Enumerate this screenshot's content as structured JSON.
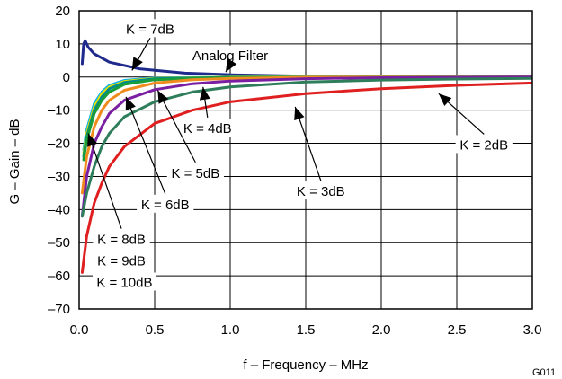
{
  "figure_id": "G011",
  "chart_data": {
    "type": "line",
    "xlabel": "f – Frequency – MHz",
    "ylabel": "G – Gain – dB",
    "xlim": [
      0,
      3.0
    ],
    "ylim": [
      -70,
      20
    ],
    "x_ticks": [
      "0.0",
      "0.5",
      "1.0",
      "1.5",
      "2.0",
      "2.5",
      "3.0"
    ],
    "y_ticks": [
      "20",
      "10",
      "0",
      "–10",
      "–20",
      "–30",
      "–40",
      "–50",
      "–60",
      "–70"
    ],
    "grid": true,
    "series": [
      {
        "name": "Analog Filter",
        "color": "#1f2a8c",
        "points": [
          [
            0.02,
            4
          ],
          [
            0.03,
            10
          ],
          [
            0.04,
            11
          ],
          [
            0.06,
            9
          ],
          [
            0.1,
            7
          ],
          [
            0.2,
            4.5
          ],
          [
            0.4,
            2.5
          ],
          [
            0.7,
            1.2
          ],
          [
            1.0,
            0.7
          ],
          [
            1.5,
            0.3
          ],
          [
            2.0,
            0.1
          ],
          [
            3.0,
            0
          ]
        ]
      },
      {
        "name": "K = 10dB",
        "color": "#00b0f0",
        "points": [
          [
            0.03,
            -22
          ],
          [
            0.05,
            -16
          ],
          [
            0.1,
            -8
          ],
          [
            0.15,
            -4.5
          ],
          [
            0.2,
            -2.5
          ],
          [
            0.3,
            -1
          ],
          [
            0.5,
            -0.3
          ],
          [
            1.0,
            0
          ],
          [
            3.0,
            0
          ]
        ]
      },
      {
        "name": "K = 9dB",
        "color": "#e8e000",
        "points": [
          [
            0.03,
            -23
          ],
          [
            0.05,
            -17
          ],
          [
            0.1,
            -9
          ],
          [
            0.15,
            -5
          ],
          [
            0.2,
            -3
          ],
          [
            0.3,
            -1.3
          ],
          [
            0.5,
            -0.4
          ],
          [
            1.0,
            0
          ],
          [
            3.0,
            0
          ]
        ]
      },
      {
        "name": "K = 8dB",
        "color": "#008b8b",
        "points": [
          [
            0.03,
            -24
          ],
          [
            0.05,
            -18
          ],
          [
            0.1,
            -10
          ],
          [
            0.15,
            -6
          ],
          [
            0.2,
            -3.5
          ],
          [
            0.3,
            -1.6
          ],
          [
            0.5,
            -0.5
          ],
          [
            1.0,
            -0.1
          ],
          [
            3.0,
            0
          ]
        ]
      },
      {
        "name": "K = 7dB",
        "color": "#1a9e3a",
        "points": [
          [
            0.03,
            -25
          ],
          [
            0.05,
            -19
          ],
          [
            0.1,
            -11
          ],
          [
            0.15,
            -7
          ],
          [
            0.2,
            -4.5
          ],
          [
            0.3,
            -2.2
          ],
          [
            0.5,
            -0.8
          ],
          [
            1.0,
            -0.1
          ],
          [
            3.0,
            0
          ]
        ]
      },
      {
        "name": "K = 6dB",
        "color": "#f08c1e",
        "points": [
          [
            0.02,
            -35
          ],
          [
            0.05,
            -24
          ],
          [
            0.1,
            -15
          ],
          [
            0.15,
            -10
          ],
          [
            0.2,
            -7
          ],
          [
            0.3,
            -4
          ],
          [
            0.5,
            -1.8
          ],
          [
            0.75,
            -0.8
          ],
          [
            1.0,
            -0.4
          ],
          [
            1.5,
            -0.1
          ],
          [
            3.0,
            0
          ]
        ]
      },
      {
        "name": "K = 5dB",
        "color": "#7a1fa2",
        "points": [
          [
            0.02,
            -42
          ],
          [
            0.05,
            -30
          ],
          [
            0.1,
            -20
          ],
          [
            0.15,
            -15
          ],
          [
            0.2,
            -11
          ],
          [
            0.3,
            -7
          ],
          [
            0.5,
            -3.8
          ],
          [
            0.75,
            -2
          ],
          [
            1.0,
            -1.2
          ],
          [
            1.5,
            -0.5
          ],
          [
            2.0,
            -0.2
          ],
          [
            3.0,
            0
          ]
        ]
      },
      {
        "name": "K = 4dB",
        "color": "#2e7d5b",
        "points": [
          [
            0.02,
            -42
          ],
          [
            0.05,
            -35
          ],
          [
            0.1,
            -27
          ],
          [
            0.15,
            -21
          ],
          [
            0.2,
            -17
          ],
          [
            0.3,
            -12
          ],
          [
            0.5,
            -7.5
          ],
          [
            0.75,
            -4.5
          ],
          [
            1.0,
            -3
          ],
          [
            1.5,
            -1.5
          ],
          [
            2.0,
            -0.9
          ],
          [
            2.5,
            -0.6
          ],
          [
            3.0,
            -0.4
          ]
        ]
      },
      {
        "name": "K = 3dB",
        "color": "#e02020",
        "points": [
          [
            0.02,
            -59
          ],
          [
            0.05,
            -48
          ],
          [
            0.1,
            -38
          ],
          [
            0.15,
            -32
          ],
          [
            0.2,
            -27
          ],
          [
            0.3,
            -21
          ],
          [
            0.5,
            -14
          ],
          [
            0.75,
            -10
          ],
          [
            1.0,
            -7.5
          ],
          [
            1.5,
            -5
          ],
          [
            2.0,
            -3.5
          ],
          [
            2.5,
            -2.5
          ],
          [
            3.0,
            -1.8
          ]
        ]
      }
    ],
    "annotations": [
      {
        "text": "K = 7dB",
        "x": 0.47,
        "y": 14.5,
        "ax": 0.35,
        "ay": 2
      },
      {
        "text": "Analog Filter",
        "x": 1.0,
        "y": 6.5,
        "ax": 0.97,
        "ay": 1.5
      },
      {
        "text": "K = 4dB",
        "x": 0.85,
        "y": -15.5,
        "ax": 0.82,
        "ay": -3
      },
      {
        "text": "K = 2dB",
        "x": 2.68,
        "y": -20.5,
        "ax": 2.38,
        "ay": -5
      },
      {
        "text": "K = 5dB",
        "x": 0.77,
        "y": -29,
        "ax": 0.52,
        "ay": -4
      },
      {
        "text": "K = 3dB",
        "x": 1.6,
        "y": -34.5,
        "ax": 1.43,
        "ay": -9
      },
      {
        "text": "K = 6dB",
        "x": 0.57,
        "y": -38.5,
        "ax": 0.31,
        "ay": -6
      },
      {
        "text": "K = 8dB",
        "x": 0.28,
        "y": -49,
        "ax": 0.06,
        "ay": -17
      },
      {
        "text": "K = 9dB",
        "x": 0.28,
        "y": -55.5,
        "ax": null,
        "ay": null
      },
      {
        "text": "K = 10dB",
        "x": 0.3,
        "y": -62,
        "ax": null,
        "ay": null
      }
    ]
  }
}
